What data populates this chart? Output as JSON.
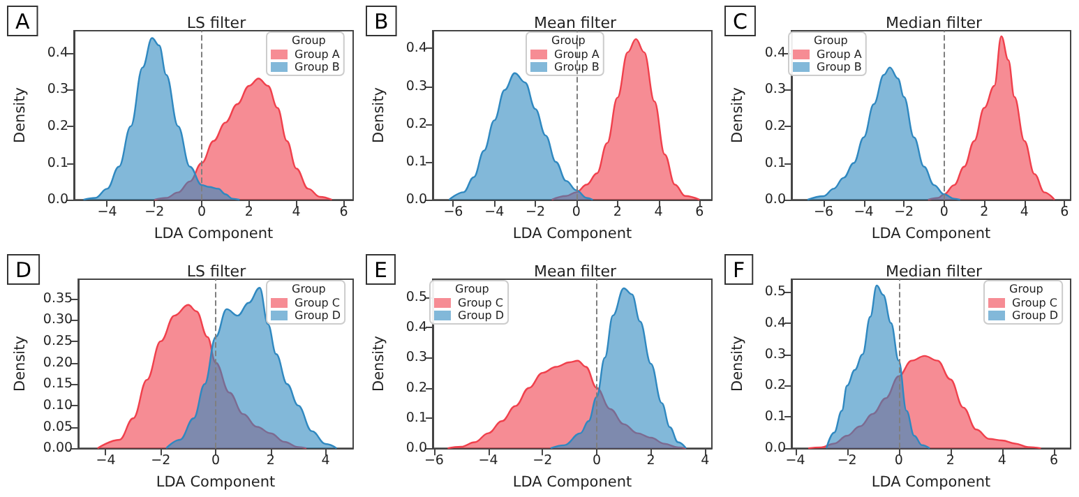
{
  "chart_data": [
    {
      "type": "area",
      "title": "LS filter",
      "xlabel": "LDA Component",
      "ylabel": "Density",
      "legend_title": "Group",
      "legend": "top right",
      "marker": "none",
      "annotations": [
        "A"
      ],
      "xlim": [
        -5.4,
        6.4
      ],
      "ylim": [
        0,
        0.46
      ],
      "xticks": [
        -4,
        -2,
        0,
        2,
        4,
        6
      ],
      "yticks": [
        {
          "value": 0,
          "label": "0.0"
        },
        {
          "value": 0.1,
          "label": "0.1"
        },
        {
          "value": 0.2,
          "label": "0.2"
        },
        {
          "value": 0.3,
          "label": "0.3"
        },
        {
          "value": 0.4,
          "label": "0.4"
        }
      ],
      "ref_lines": [
        {
          "axis": "x",
          "value": 0,
          "color": "#7f7f7f",
          "line_style": "dashed"
        }
      ],
      "series": [
        {
          "name": "Group A",
          "color": "#f0404c",
          "x": [
            -2,
            -1.5,
            -1,
            -0.5,
            0,
            0.5,
            1,
            1.5,
            2,
            2.4,
            2.8,
            3.2,
            3.6,
            4,
            4.5,
            5,
            5.5
          ],
          "values": [
            0,
            0.005,
            0.02,
            0.05,
            0.1,
            0.16,
            0.21,
            0.26,
            0.31,
            0.33,
            0.31,
            0.25,
            0.16,
            0.085,
            0.03,
            0.008,
            0
          ]
        },
        {
          "name": "Group B",
          "color": "#2f88c0",
          "x": [
            -5,
            -4.5,
            -4,
            -3.5,
            -3,
            -2.5,
            -2.1,
            -1.8,
            -1.5,
            -1,
            -0.5,
            0,
            0.3,
            0.7,
            1,
            1.3,
            1.6
          ],
          "values": [
            0,
            0.005,
            0.03,
            0.09,
            0.2,
            0.36,
            0.44,
            0.42,
            0.34,
            0.2,
            0.09,
            0.04,
            0.035,
            0.03,
            0.015,
            0.003,
            0
          ]
        }
      ]
    },
    {
      "type": "area",
      "title": "Mean filter",
      "xlabel": "LDA Component",
      "ylabel": "Density",
      "legend_title": "Group",
      "legend": "top",
      "marker": "none",
      "annotations": [
        "B"
      ],
      "xlim": [
        -7,
        6.6
      ],
      "ylim": [
        0,
        0.447
      ],
      "xticks": [
        -6,
        -4,
        -2,
        0,
        2,
        4,
        6
      ],
      "yticks": [
        {
          "value": 0,
          "label": "0.0"
        },
        {
          "value": 0.1,
          "label": "0.1"
        },
        {
          "value": 0.2,
          "label": "0.2"
        },
        {
          "value": 0.3,
          "label": "0.3"
        },
        {
          "value": 0.4,
          "label": "0.4"
        }
      ],
      "ref_lines": [
        {
          "axis": "x",
          "value": 0,
          "color": "#7f7f7f",
          "line_style": "dashed"
        }
      ],
      "series": [
        {
          "name": "Group A",
          "color": "#f0404c",
          "x": [
            -1.2,
            -0.5,
            0,
            0.5,
            1,
            1.5,
            2,
            2.5,
            2.9,
            3.3,
            3.8,
            4.3,
            4.8,
            5.3,
            6
          ],
          "values": [
            0,
            0.01,
            0.02,
            0.04,
            0.07,
            0.15,
            0.27,
            0.39,
            0.425,
            0.39,
            0.26,
            0.12,
            0.04,
            0.01,
            0
          ]
        },
        {
          "name": "Group B",
          "color": "#2f88c0",
          "x": [
            -6.2,
            -5.5,
            -5,
            -4.5,
            -4,
            -3.5,
            -3,
            -2.5,
            -2,
            -1.5,
            -1,
            -0.5,
            0,
            0.5,
            0.8
          ],
          "values": [
            0,
            0.02,
            0.06,
            0.13,
            0.21,
            0.29,
            0.335,
            0.31,
            0.24,
            0.17,
            0.1,
            0.05,
            0.025,
            0.005,
            0
          ]
        }
      ]
    },
    {
      "type": "area",
      "title": "Median filter",
      "xlabel": "LDA Component",
      "ylabel": "Density",
      "legend_title": "Group",
      "legend": "top left",
      "marker": "none",
      "annotations": [
        "C"
      ],
      "xlim": [
        -7.6,
        6.3
      ],
      "ylim": [
        0,
        0.46
      ],
      "xticks": [
        -6,
        -4,
        -2,
        0,
        2,
        4,
        6
      ],
      "yticks": [
        {
          "value": 0,
          "label": "0.0"
        },
        {
          "value": 0.1,
          "label": "0.1"
        },
        {
          "value": 0.2,
          "label": "0.2"
        },
        {
          "value": 0.3,
          "label": "0.3"
        },
        {
          "value": 0.4,
          "label": "0.4"
        }
      ],
      "ref_lines": [
        {
          "axis": "x",
          "value": 0,
          "color": "#7f7f7f",
          "line_style": "dashed"
        }
      ],
      "series": [
        {
          "name": "Group A",
          "color": "#f0404c",
          "x": [
            -0.8,
            -0.3,
            0,
            0.5,
            1,
            1.5,
            2,
            2.5,
            2.85,
            3.2,
            3.5,
            4,
            4.5,
            5,
            5.5
          ],
          "values": [
            0,
            0.005,
            0.015,
            0.04,
            0.09,
            0.16,
            0.25,
            0.31,
            0.445,
            0.38,
            0.28,
            0.16,
            0.07,
            0.02,
            0
          ]
        },
        {
          "name": "Group B",
          "color": "#2f88c0",
          "x": [
            -6.8,
            -6,
            -5.5,
            -5,
            -4.5,
            -4,
            -3.5,
            -3,
            -2.7,
            -2.3,
            -2,
            -1.5,
            -1,
            -0.5,
            0,
            0.5,
            0.8
          ],
          "values": [
            0,
            0.01,
            0.03,
            0.06,
            0.1,
            0.17,
            0.26,
            0.34,
            0.36,
            0.33,
            0.28,
            0.17,
            0.09,
            0.04,
            0.015,
            0.003,
            0
          ]
        }
      ]
    },
    {
      "type": "area",
      "title": "LS filter",
      "xlabel": "LDA Component",
      "ylabel": "Density",
      "legend_title": "Group",
      "legend": "top right",
      "marker": "none",
      "annotations": [
        "D"
      ],
      "xlim": [
        -5,
        5
      ],
      "ylim": [
        0,
        0.395
      ],
      "xticks": [
        -4,
        -2,
        0,
        2,
        4
      ],
      "yticks": [
        {
          "value": 0,
          "label": "0.00"
        },
        {
          "value": 0.05,
          "label": "0.05"
        },
        {
          "value": 0.1,
          "label": "0.10"
        },
        {
          "value": 0.15,
          "label": "0.15"
        },
        {
          "value": 0.2,
          "label": "0.20"
        },
        {
          "value": 0.25,
          "label": "0.25"
        },
        {
          "value": 0.3,
          "label": "0.30"
        },
        {
          "value": 0.35,
          "label": "0.35"
        }
      ],
      "ref_lines": [
        {
          "axis": "x",
          "value": 0,
          "color": "#7f7f7f",
          "line_style": "dashed"
        }
      ],
      "series": [
        {
          "name": "Group C",
          "color": "#f0404c",
          "x": [
            -4.3,
            -3.5,
            -3,
            -2.5,
            -2,
            -1.5,
            -1,
            -0.7,
            -0.3,
            0,
            0.5,
            1,
            1.5,
            2,
            2.5,
            3,
            3.3
          ],
          "values": [
            0,
            0.02,
            0.07,
            0.16,
            0.25,
            0.31,
            0.335,
            0.32,
            0.26,
            0.2,
            0.13,
            0.08,
            0.05,
            0.035,
            0.015,
            0.003,
            0
          ]
        },
        {
          "name": "Group D",
          "color": "#2f88c0",
          "x": [
            -1.8,
            -1.3,
            -0.8,
            -0.4,
            0,
            0.4,
            0.8,
            1.2,
            1.6,
            1.9,
            2.2,
            2.6,
            3,
            3.5,
            4,
            4.4
          ],
          "values": [
            0,
            0.02,
            0.07,
            0.15,
            0.26,
            0.325,
            0.31,
            0.34,
            0.375,
            0.29,
            0.22,
            0.15,
            0.1,
            0.04,
            0.01,
            0
          ]
        }
      ]
    },
    {
      "type": "area",
      "title": "Mean filter",
      "xlabel": "LDA Component",
      "ylabel": "Density",
      "legend_title": "Group",
      "legend": "top left",
      "marker": "none",
      "annotations": [
        "E"
      ],
      "xlim": [
        -6.05,
        4.25
      ],
      "ylim": [
        0,
        0.56
      ],
      "xticks": [
        -6,
        -4,
        -2,
        0,
        2,
        4
      ],
      "yticks": [
        {
          "value": 0,
          "label": "0.0"
        },
        {
          "value": 0.1,
          "label": "0.1"
        },
        {
          "value": 0.2,
          "label": "0.2"
        },
        {
          "value": 0.3,
          "label": "0.3"
        },
        {
          "value": 0.4,
          "label": "0.4"
        },
        {
          "value": 0.5,
          "label": "0.5"
        }
      ],
      "ref_lines": [
        {
          "axis": "x",
          "value": 0,
          "color": "#7f7f7f",
          "line_style": "dashed"
        }
      ],
      "series": [
        {
          "name": "Group C",
          "color": "#f0404c",
          "x": [
            -5.5,
            -5,
            -4.5,
            -4,
            -3.5,
            -3,
            -2.5,
            -2,
            -1.5,
            -1,
            -0.7,
            -0.4,
            0,
            0.5,
            1,
            1.5,
            2,
            2.5,
            3,
            3.3
          ],
          "values": [
            0,
            0.005,
            0.02,
            0.05,
            0.09,
            0.14,
            0.2,
            0.25,
            0.27,
            0.285,
            0.29,
            0.27,
            0.2,
            0.13,
            0.08,
            0.05,
            0.035,
            0.015,
            0.003,
            0
          ]
        },
        {
          "name": "Group D",
          "color": "#2f88c0",
          "x": [
            -1.7,
            -1.2,
            -0.6,
            -0.3,
            0,
            0.3,
            0.6,
            1,
            1.3,
            1.6,
            2,
            2.4,
            2.7,
            3,
            3.3
          ],
          "values": [
            0,
            0.01,
            0.05,
            0.09,
            0.17,
            0.3,
            0.44,
            0.53,
            0.51,
            0.42,
            0.28,
            0.15,
            0.07,
            0.02,
            0
          ]
        }
      ]
    },
    {
      "type": "area",
      "title": "Median filter",
      "xlabel": "LDA Component",
      "ylabel": "Density",
      "legend_title": "Group",
      "legend": "top right",
      "marker": "none",
      "annotations": [
        "F"
      ],
      "xlim": [
        -4.15,
        6.65
      ],
      "ylim": [
        0,
        0.54
      ],
      "xticks": [
        -4,
        -2,
        0,
        2,
        4,
        6
      ],
      "yticks": [
        {
          "value": 0,
          "label": "0.0"
        },
        {
          "value": 0.1,
          "label": "0.1"
        },
        {
          "value": 0.2,
          "label": "0.2"
        },
        {
          "value": 0.3,
          "label": "0.3"
        },
        {
          "value": 0.4,
          "label": "0.4"
        },
        {
          "value": 0.5,
          "label": "0.5"
        }
      ],
      "ref_lines": [
        {
          "axis": "x",
          "value": 0,
          "color": "#7f7f7f",
          "line_style": "dashed"
        }
      ],
      "series": [
        {
          "name": "Group C",
          "color": "#f0404c",
          "x": [
            -3.5,
            -3,
            -2.5,
            -2,
            -1.5,
            -1,
            -0.5,
            0,
            0.5,
            1,
            1.5,
            2,
            2.5,
            3,
            3.5,
            4,
            4.5,
            5,
            5.5
          ],
          "values": [
            0,
            0.003,
            0.015,
            0.04,
            0.07,
            0.11,
            0.16,
            0.23,
            0.28,
            0.295,
            0.28,
            0.22,
            0.13,
            0.06,
            0.03,
            0.025,
            0.015,
            0.004,
            0
          ]
        },
        {
          "name": "Group D",
          "color": "#2f88c0",
          "x": [
            -2.8,
            -2.5,
            -2.2,
            -2,
            -1.7,
            -1.4,
            -1.1,
            -0.85,
            -0.6,
            -0.3,
            0,
            0.3,
            0.6,
            0.9,
            1.2
          ],
          "values": [
            0,
            0.05,
            0.12,
            0.2,
            0.25,
            0.3,
            0.42,
            0.52,
            0.49,
            0.4,
            0.28,
            0.12,
            0.04,
            0.01,
            0
          ]
        }
      ]
    }
  ]
}
